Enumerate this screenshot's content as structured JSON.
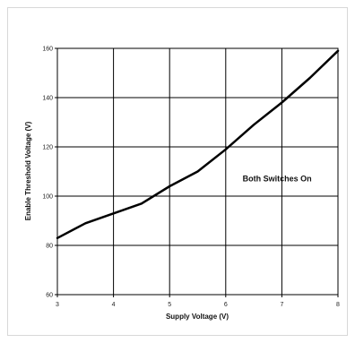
{
  "chart_data": {
    "type": "line",
    "title": "",
    "xlabel": "Supply Voltage (V)",
    "ylabel": "Enable Threshold Voltage (V)",
    "xlim": [
      3,
      8
    ],
    "ylim": [
      60,
      160
    ],
    "xticks": [
      3,
      4,
      5,
      6,
      7,
      8
    ],
    "yticks": [
      60,
      80,
      100,
      120,
      140,
      160
    ],
    "x_tick_labels": [
      "3",
      "4",
      "5",
      "6",
      "7",
      "8"
    ],
    "y_tick_labels": [
      "60",
      "80",
      "100",
      "120",
      "140",
      "160"
    ],
    "grid": true,
    "series": [
      {
        "x": [
          3.0,
          3.5,
          4.0,
          4.5,
          5.0,
          5.5,
          6.0,
          6.5,
          7.0,
          7.5,
          8.0
        ],
        "y": [
          83,
          89,
          93,
          97,
          104,
          110,
          119,
          129,
          138,
          148,
          159
        ],
        "color": "#000000"
      }
    ],
    "annotations": [
      {
        "text": "Both Switches On",
        "x": 6.3,
        "y": 106
      }
    ]
  }
}
